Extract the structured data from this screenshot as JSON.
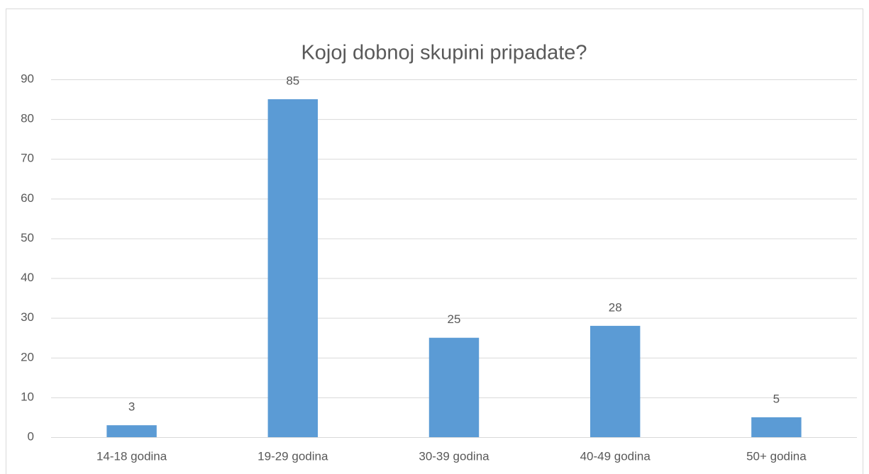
{
  "chart_data": {
    "type": "bar",
    "title": "Kojoj dobnoj skupini pripadate?",
    "categories": [
      "14-18 godina",
      "19-29 godina",
      "30-39 godina",
      "40-49 godina",
      "50+ godina"
    ],
    "values": [
      3,
      85,
      25,
      28,
      5
    ],
    "color": "#5b9bd5",
    "ylim": [
      0,
      90
    ],
    "yticks": [
      0,
      10,
      20,
      30,
      40,
      50,
      60,
      70,
      80,
      90
    ],
    "grid": true,
    "data_labels": true
  }
}
